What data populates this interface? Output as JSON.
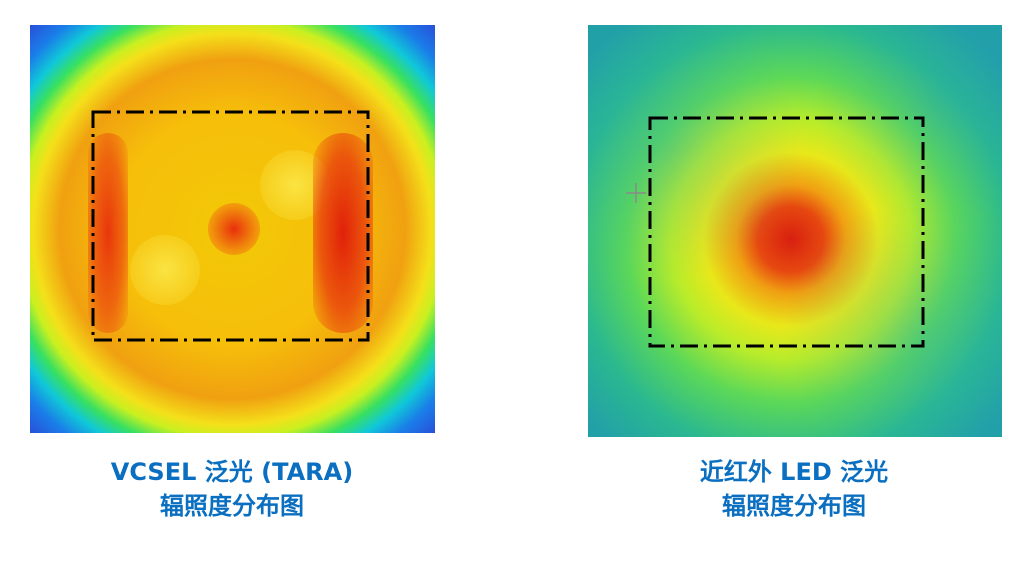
{
  "panels": [
    {
      "caption_line1": "VCSEL 泛光 (TARA)",
      "caption_line2": "辐照度分布图"
    },
    {
      "caption_line1": "近红外 LED 泛光",
      "caption_line2": "辐照度分布图"
    }
  ],
  "colors": {
    "caption_text": "#0a6fc0",
    "boundary_line": "#000000"
  }
}
